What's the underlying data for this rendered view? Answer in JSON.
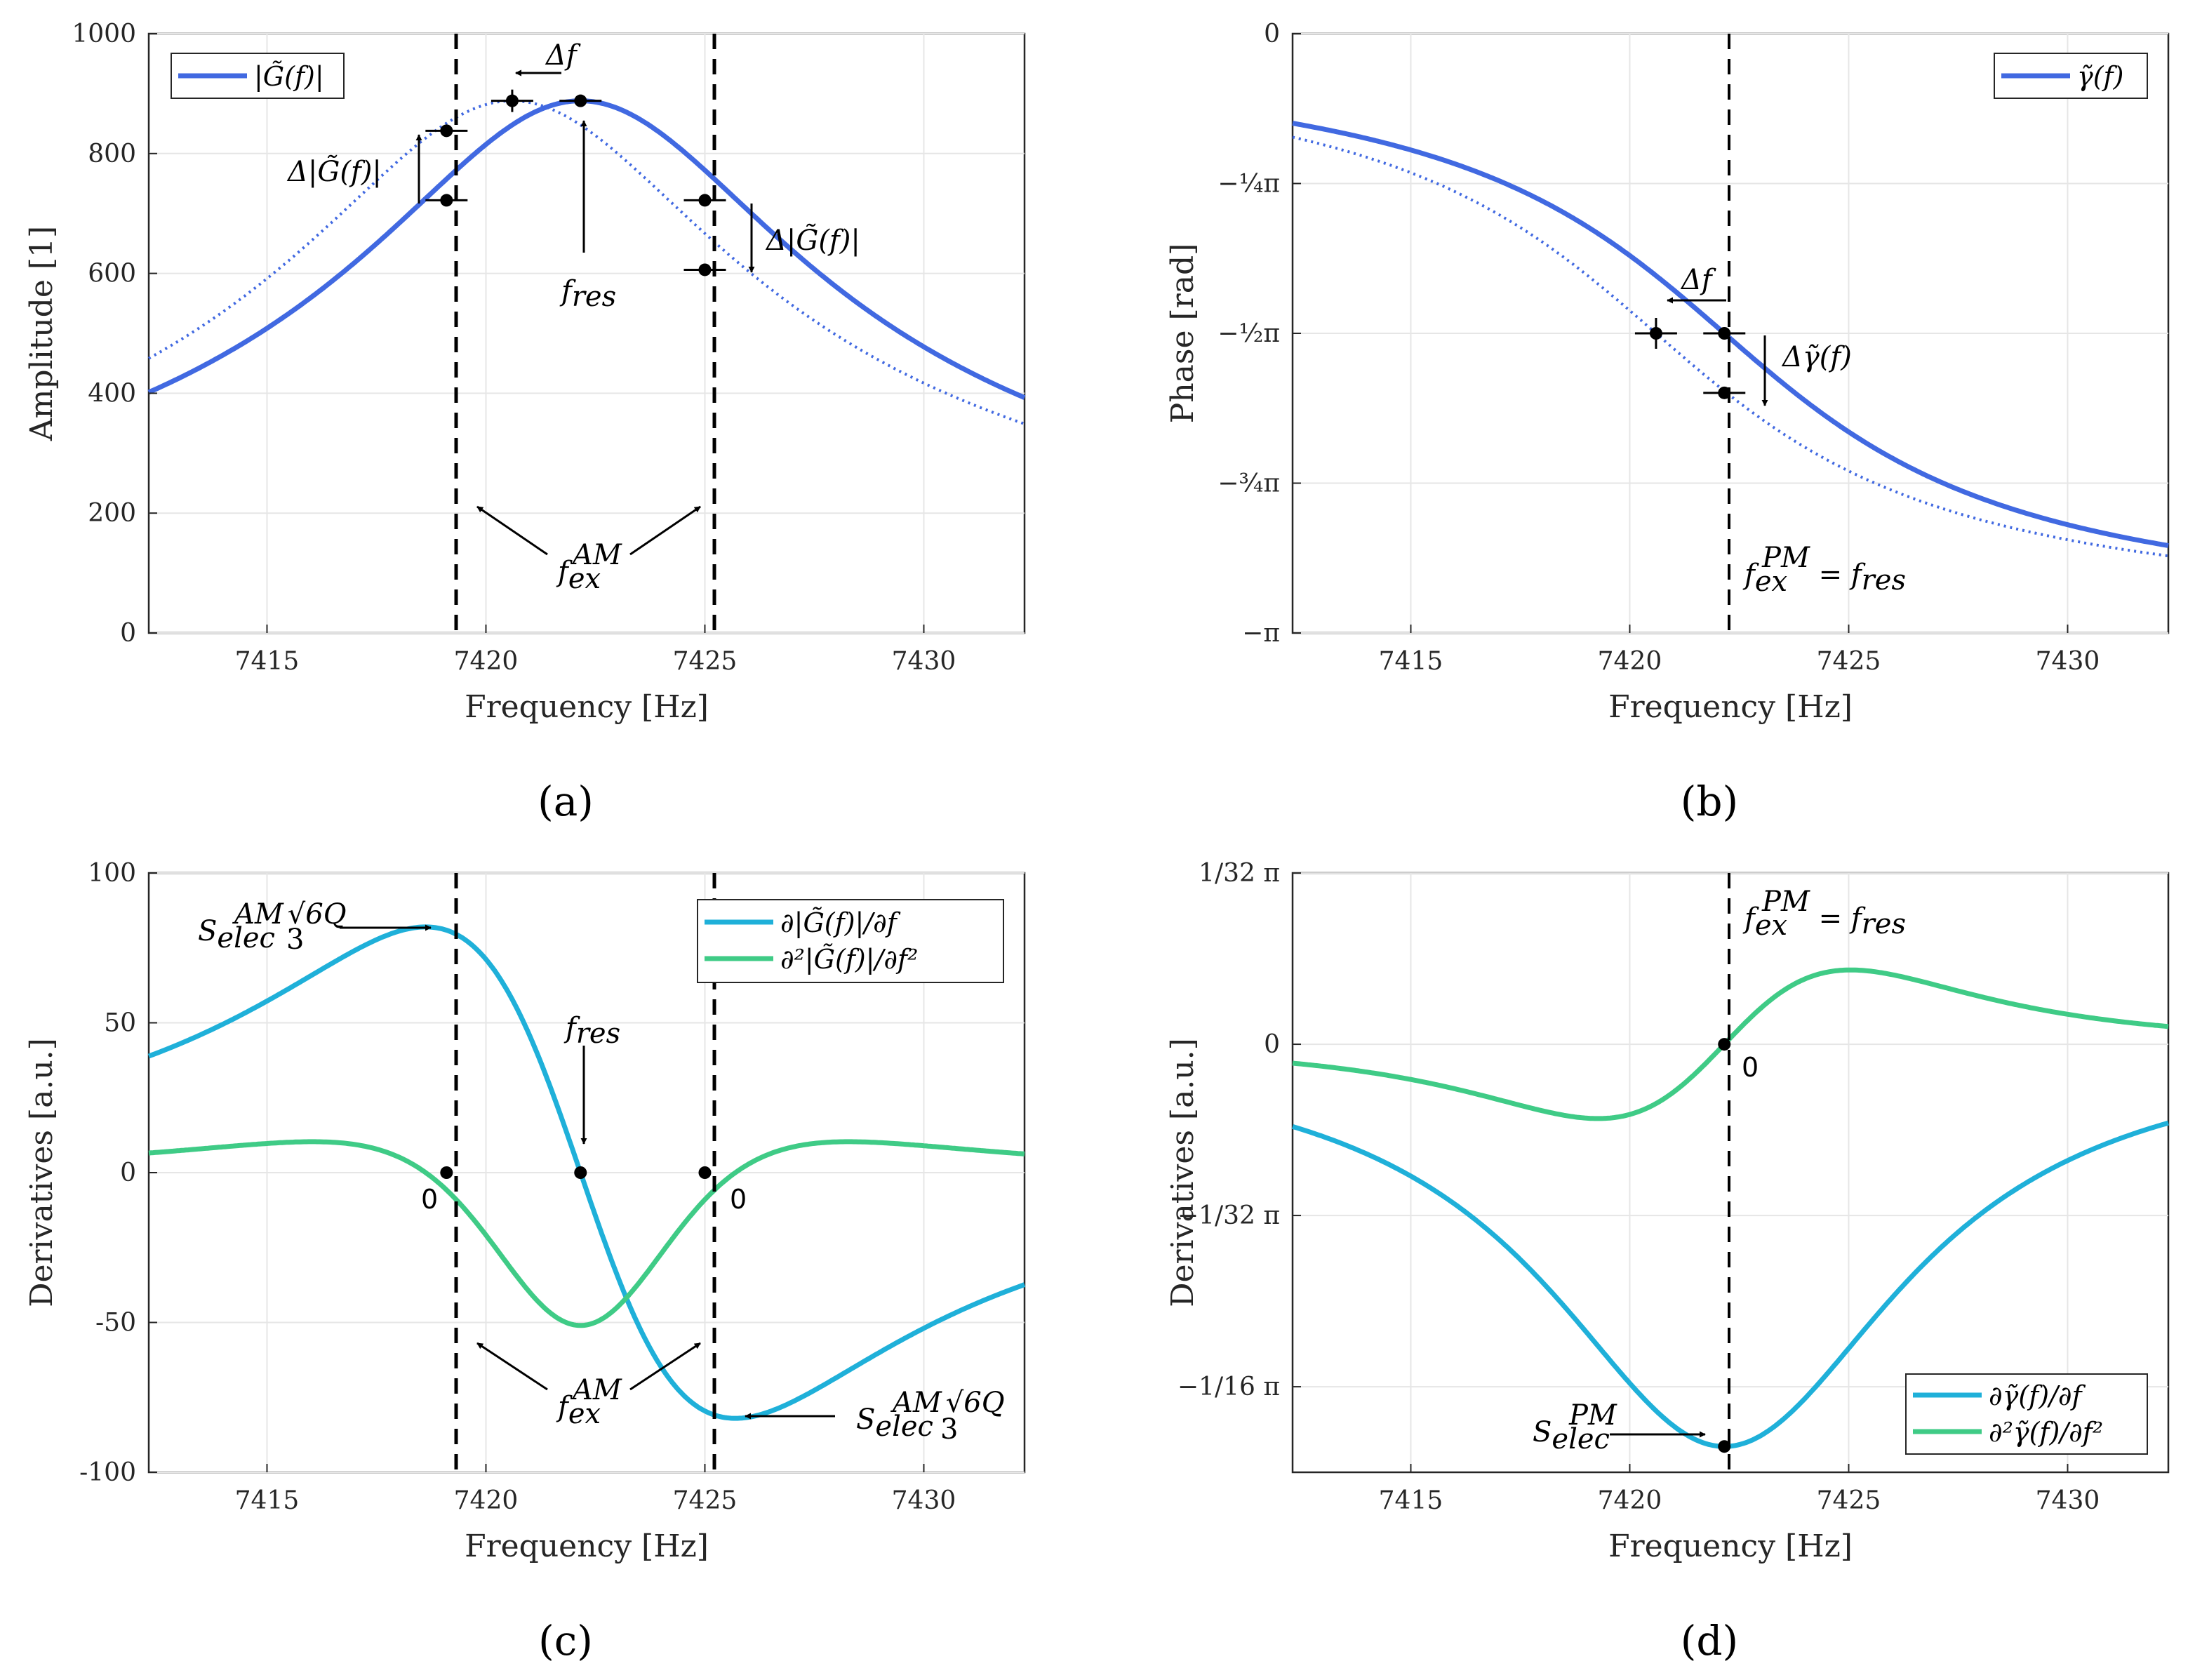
{
  "panels": [
    {
      "id": "a",
      "label": "(a)",
      "xlabel": "Frequency [Hz]",
      "ylabel": "Amplitude [1]",
      "xticks": [
        "7415",
        "7420",
        "7425",
        "7430"
      ],
      "yticks": [
        "0",
        "200",
        "400",
        "600",
        "800",
        "1000"
      ],
      "legend": [
        "|G̃(f)|"
      ],
      "annotations": {
        "delta_f": "Δf",
        "delta_G_left": "Δ|G̃(f)|",
        "delta_G_right": "Δ|G̃(f)|",
        "f_res": "f",
        "f_res_sub": "res",
        "f_ex": "f",
        "f_ex_sub": "ex",
        "f_ex_sup": "AM"
      }
    },
    {
      "id": "b",
      "label": "(b)",
      "xlabel": "Frequency [Hz]",
      "ylabel": "Phase [rad]",
      "xticks": [
        "7415",
        "7420",
        "7425",
        "7430"
      ],
      "yticks": [
        "0",
        "−¼π",
        "−½π",
        "−¾π",
        "−π"
      ],
      "legend": [
        "γ̃(f)"
      ],
      "annotations": {
        "delta_f": "Δf",
        "delta_gamma": "Δγ̃(f)",
        "f_ex_pm": "f",
        "f_ex_pm_sub": "ex",
        "f_ex_pm_sup": "PM",
        "equals": " = f",
        "f_res_sub": "res"
      }
    },
    {
      "id": "c",
      "label": "(c)",
      "xlabel": "Frequency [Hz]",
      "ylabel": "Derivatives [a.u.]",
      "xticks": [
        "7415",
        "7420",
        "7425",
        "7430"
      ],
      "yticks": [
        "-100",
        "-50",
        "0",
        "50",
        "100"
      ],
      "legend": [
        "∂|G̃(f)|/∂f",
        "∂²|G̃(f)|/∂f²"
      ],
      "annotations": {
        "s_elec": "S",
        "s_elec_sub": "elec",
        "s_elec_sup": "AM",
        "s_elec_frac": "√6Q",
        "s_elec_den": "3",
        "f_res": "f",
        "f_res_sub": "res",
        "f_ex": "f",
        "f_ex_sub": "ex",
        "f_ex_sup": "AM",
        "zero_left": "0",
        "zero_right": "0"
      }
    },
    {
      "id": "d",
      "label": "(d)",
      "xlabel": "Frequency [Hz]",
      "ylabel": "Derivatives [a.u.]",
      "xticks": [
        "7415",
        "7420",
        "7425",
        "7430"
      ],
      "yticks": [
        "1/32 π",
        "0",
        "−1/32 π",
        "−1/16 π"
      ],
      "legend": [
        "∂γ̃(f)/∂f",
        "∂²γ̃(f)/∂f²"
      ],
      "annotations": {
        "f_ex_pm": "f",
        "f_ex_pm_sub": "ex",
        "f_ex_pm_sup": "PM",
        "equals": " = f",
        "f_res_sub": "res",
        "zero": "0",
        "s_elec": "S",
        "s_elec_sub": "elec",
        "s_elec_sup": "PM"
      }
    }
  ],
  "chart_data": [
    {
      "type": "line",
      "panel": "a",
      "xlim": [
        7412.3,
        7432.3
      ],
      "ylim": [
        0,
        1000
      ],
      "series": [
        {
          "name": "|G̃(f)|",
          "model": "lorentz_amplitude",
          "f0": 7422.16,
          "peak": 888,
          "hwhm": 5.0,
          "style": "solid",
          "color": "#4169E1"
        },
        {
          "name": "|G̃(f)| shifted",
          "model": "lorentz_amplitude",
          "f0": 7420.6,
          "peak": 888,
          "hwhm": 5.0,
          "style": "dotted",
          "color": "#4169E1"
        }
      ],
      "vlines": [
        7419.1,
        7425.0
      ],
      "markers": [
        [
          7419.1,
          722
        ],
        [
          7419.1,
          838
        ],
        [
          7420.6,
          888
        ],
        [
          7422.16,
          888
        ],
        [
          7425.0,
          722
        ],
        [
          7425.0,
          606
        ]
      ]
    },
    {
      "type": "line",
      "panel": "b",
      "xlim": [
        7412.3,
        7432.3
      ],
      "ylim": [
        -3.14159,
        0
      ],
      "series": [
        {
          "name": "γ̃(f)",
          "model": "lorentz_phase",
          "f0": 7422.16,
          "hwhm": 5.0,
          "style": "solid",
          "color": "#4169E1"
        },
        {
          "name": "γ̃(f) shifted",
          "model": "lorentz_phase",
          "f0": 7420.6,
          "hwhm": 5.0,
          "style": "dotted",
          "color": "#4169E1"
        }
      ],
      "vlines": [
        7422.16
      ],
      "markers": [
        [
          7420.6,
          -1.5708
        ],
        [
          7422.16,
          -1.5708
        ],
        [
          7422.16,
          -1.883
        ]
      ]
    },
    {
      "type": "line",
      "panel": "c",
      "xlim": [
        7412.3,
        7432.3
      ],
      "ylim": [
        -100,
        100
      ],
      "series": [
        {
          "name": "∂|G̃(f)|/∂f",
          "model": "amp_first_derivative",
          "f0": 7422.16,
          "hwhm": 5.0,
          "scale": 82,
          "color": "#1FB0D9"
        },
        {
          "name": "∂²|G̃(f)|/∂f²",
          "model": "amp_second_derivative",
          "f0": 7422.16,
          "hwhm": 5.0,
          "scale": 51,
          "color": "#3FCB86"
        }
      ],
      "vlines": [
        7419.1,
        7425.0
      ],
      "markers": [
        [
          7419.1,
          0
        ],
        [
          7422.16,
          0
        ],
        [
          7425.0,
          0
        ]
      ]
    },
    {
      "type": "line",
      "panel": "d",
      "xlim": [
        7412.3,
        7432.3
      ],
      "ylim": [
        -0.2454,
        0.0982
      ],
      "series": [
        {
          "name": "∂γ̃(f)/∂f",
          "model": "phase_first_derivative",
          "f0": 7422.16,
          "hwhm": 5.0,
          "scale": 0.2306,
          "color": "#1FB0D9"
        },
        {
          "name": "∂²γ̃(f)/∂f²",
          "model": "phase_second_derivative",
          "f0": 7422.16,
          "hwhm": 5.0,
          "scale": 0.0426,
          "color": "#3FCB86"
        }
      ],
      "vlines": [
        7422.16
      ],
      "markers": [
        [
          7422.16,
          0
        ],
        [
          7422.16,
          -0.2306
        ]
      ]
    }
  ]
}
